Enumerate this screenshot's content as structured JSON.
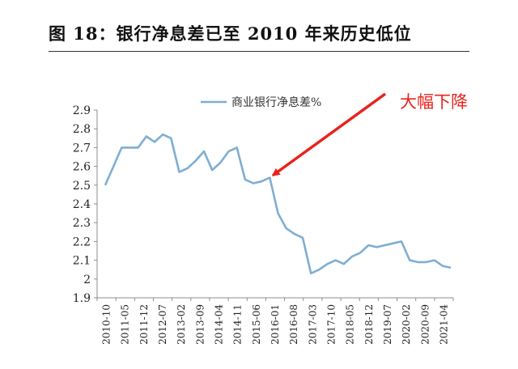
{
  "title": "图 18：银行净息差已至 2010 年来历史低位",
  "annotation": "大幅下降",
  "colors": {
    "line": "#7eaed3",
    "axis": "#8c8c8c",
    "arrow": "#e8231d",
    "annotation": "#e8231d"
  },
  "chart_data": {
    "type": "line",
    "title": "图 18：银行净息差已至 2010 年来历史低位",
    "xlabel": "",
    "ylabel": "",
    "ylim": [
      1.9,
      2.9
    ],
    "yticks": [
      "2.9",
      "2.8",
      "2.7",
      "2.6",
      "2.5",
      "2.4",
      "2.3",
      "2.2",
      "2.1",
      "2",
      "1.9"
    ],
    "grid": false,
    "legend": "top-left",
    "x_tick_labels": [
      "2010-10",
      "2011-05",
      "2011-12",
      "2012-07",
      "2013-02",
      "2013-09",
      "2014-04",
      "2014-11",
      "2015-06",
      "2016-01",
      "2016-08",
      "2017-03",
      "2017-10",
      "2018-05",
      "2018-12",
      "2019-07",
      "2020-02",
      "2020-09",
      "2021-04"
    ],
    "series": [
      {
        "name": "商业银行净息差%",
        "values": [
          2.5,
          2.6,
          2.7,
          2.7,
          2.7,
          2.76,
          2.73,
          2.77,
          2.75,
          2.57,
          2.59,
          2.63,
          2.68,
          2.58,
          2.62,
          2.68,
          2.7,
          2.53,
          2.51,
          2.52,
          2.54,
          2.35,
          2.27,
          2.24,
          2.22,
          2.03,
          2.05,
          2.08,
          2.1,
          2.08,
          2.12,
          2.14,
          2.18,
          2.17,
          2.18,
          2.19,
          2.2,
          2.1,
          2.09,
          2.09,
          2.1,
          2.07,
          2.06
        ]
      }
    ],
    "annotations": [
      {
        "text": "大幅下降",
        "points_to": {
          "x_index": 20,
          "y": 2.54
        }
      }
    ]
  }
}
